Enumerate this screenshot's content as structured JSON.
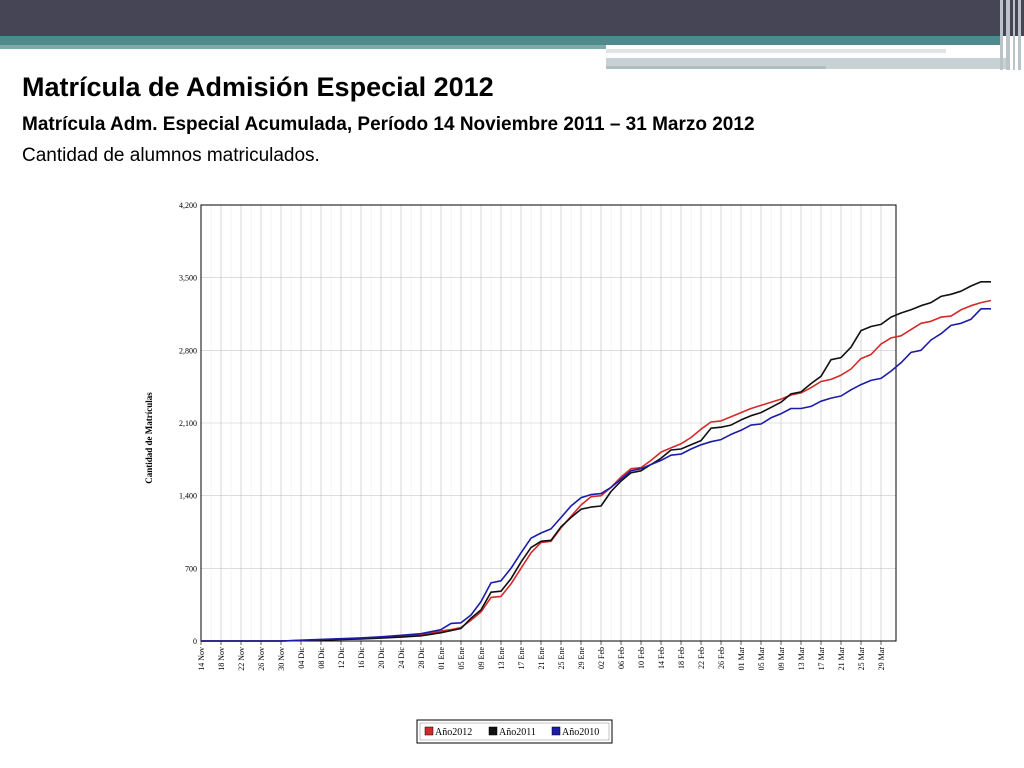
{
  "slide": {
    "title": "Matrícula de Admisión Especial 2012",
    "subtitle": "Matrícula Adm. Especial Acumulada, Período 14 Noviembre 2011 – 31 Marzo 2012",
    "subtitle2": "Cantidad de alumnos matriculados."
  },
  "chart_data": {
    "type": "line",
    "ylabel": "Cantidad de Matrículas",
    "xlabel": "",
    "ylim": [
      0,
      4200
    ],
    "y_ticks": [
      "0",
      "700",
      "1,400",
      "2,100",
      "2,800",
      "3,500",
      "4,200"
    ],
    "y_tick_values": [
      0,
      700,
      1400,
      2100,
      2800,
      3500,
      4200
    ],
    "x_ticks": [
      "14 Nov",
      "18 Nov",
      "22 Nov",
      "26 Nov",
      "30 Nov",
      "04 Dic",
      "08 Dic",
      "12 Dic",
      "16 Dic",
      "20 Dic",
      "24 Dic",
      "28 Dic",
      "01 Ene",
      "05 Ene",
      "09 Ene",
      "13 Ene",
      "17 Ene",
      "21 Ene",
      "25 Ene",
      "29 Ene",
      "02 Feb",
      "06 Feb",
      "10 Feb",
      "14 Feb",
      "18 Feb",
      "22 Feb",
      "26 Feb",
      "01 Mar",
      "05 Mar",
      "09 Mar",
      "13 Mar",
      "17 Mar",
      "21 Mar",
      "25 Mar",
      "29 Mar"
    ],
    "x_range_days": [
      0,
      139
    ],
    "grid": true,
    "legend_position": "bottom",
    "series": [
      {
        "name": "Año2012",
        "color": "#d42a2a",
        "points": [
          [
            0,
            0
          ],
          [
            16,
            0
          ],
          [
            20,
            5
          ],
          [
            24,
            12
          ],
          [
            28,
            18
          ],
          [
            32,
            25
          ],
          [
            36,
            35
          ],
          [
            40,
            45
          ],
          [
            44,
            60
          ],
          [
            46,
            75
          ],
          [
            48,
            95
          ],
          [
            50,
            110
          ],
          [
            52,
            130
          ],
          [
            54,
            200
          ],
          [
            56,
            280
          ],
          [
            58,
            420
          ],
          [
            60,
            430
          ],
          [
            62,
            550
          ],
          [
            64,
            700
          ],
          [
            66,
            850
          ],
          [
            68,
            950
          ],
          [
            70,
            960
          ],
          [
            72,
            1090
          ],
          [
            74,
            1200
          ],
          [
            76,
            1310
          ],
          [
            78,
            1390
          ],
          [
            80,
            1400
          ],
          [
            82,
            1480
          ],
          [
            84,
            1580
          ],
          [
            86,
            1660
          ],
          [
            88,
            1670
          ],
          [
            90,
            1740
          ],
          [
            92,
            1820
          ],
          [
            94,
            1860
          ],
          [
            96,
            1900
          ],
          [
            98,
            1960
          ],
          [
            100,
            2040
          ],
          [
            102,
            2110
          ],
          [
            104,
            2120
          ],
          [
            106,
            2160
          ],
          [
            108,
            2200
          ],
          [
            110,
            2240
          ],
          [
            112,
            2270
          ],
          [
            114,
            2300
          ],
          [
            116,
            2330
          ],
          [
            118,
            2370
          ],
          [
            120,
            2390
          ],
          [
            122,
            2440
          ],
          [
            124,
            2500
          ],
          [
            126,
            2520
          ],
          [
            128,
            2560
          ],
          [
            130,
            2620
          ],
          [
            132,
            2720
          ],
          [
            134,
            2760
          ],
          [
            136,
            2860
          ],
          [
            138,
            2920
          ],
          [
            140,
            2940
          ],
          [
            142,
            3000
          ],
          [
            144,
            3060
          ],
          [
            146,
            3080
          ],
          [
            148,
            3120
          ],
          [
            150,
            3130
          ],
          [
            152,
            3190
          ],
          [
            154,
            3230
          ],
          [
            156,
            3260
          ],
          [
            158,
            3280
          ]
        ]
      },
      {
        "name": "Año2011",
        "color": "#111111",
        "points": [
          [
            0,
            0
          ],
          [
            16,
            0
          ],
          [
            20,
            5
          ],
          [
            24,
            10
          ],
          [
            28,
            15
          ],
          [
            32,
            20
          ],
          [
            36,
            28
          ],
          [
            40,
            38
          ],
          [
            44,
            50
          ],
          [
            46,
            65
          ],
          [
            48,
            80
          ],
          [
            50,
            100
          ],
          [
            52,
            120
          ],
          [
            54,
            220
          ],
          [
            56,
            300
          ],
          [
            58,
            470
          ],
          [
            60,
            480
          ],
          [
            62,
            600
          ],
          [
            64,
            760
          ],
          [
            66,
            900
          ],
          [
            68,
            960
          ],
          [
            70,
            970
          ],
          [
            72,
            1100
          ],
          [
            74,
            1190
          ],
          [
            76,
            1270
          ],
          [
            78,
            1290
          ],
          [
            80,
            1300
          ],
          [
            82,
            1440
          ],
          [
            84,
            1540
          ],
          [
            86,
            1620
          ],
          [
            88,
            1640
          ],
          [
            90,
            1700
          ],
          [
            92,
            1760
          ],
          [
            94,
            1840
          ],
          [
            96,
            1850
          ],
          [
            98,
            1890
          ],
          [
            100,
            1930
          ],
          [
            102,
            2050
          ],
          [
            104,
            2060
          ],
          [
            106,
            2080
          ],
          [
            108,
            2130
          ],
          [
            110,
            2170
          ],
          [
            112,
            2200
          ],
          [
            114,
            2250
          ],
          [
            116,
            2300
          ],
          [
            118,
            2380
          ],
          [
            120,
            2400
          ],
          [
            122,
            2480
          ],
          [
            124,
            2550
          ],
          [
            126,
            2710
          ],
          [
            128,
            2730
          ],
          [
            130,
            2830
          ],
          [
            132,
            2990
          ],
          [
            134,
            3030
          ],
          [
            136,
            3050
          ],
          [
            138,
            3120
          ],
          [
            140,
            3160
          ],
          [
            142,
            3190
          ],
          [
            144,
            3230
          ],
          [
            146,
            3260
          ],
          [
            148,
            3320
          ],
          [
            150,
            3340
          ],
          [
            152,
            3370
          ],
          [
            154,
            3420
          ],
          [
            156,
            3460
          ],
          [
            158,
            3460
          ]
        ]
      },
      {
        "name": "Año2010",
        "color": "#1c1ca8",
        "points": [
          [
            0,
            0
          ],
          [
            16,
            0
          ],
          [
            20,
            8
          ],
          [
            24,
            15
          ],
          [
            28,
            22
          ],
          [
            32,
            30
          ],
          [
            36,
            40
          ],
          [
            40,
            55
          ],
          [
            44,
            70
          ],
          [
            46,
            90
          ],
          [
            48,
            110
          ],
          [
            50,
            170
          ],
          [
            52,
            175
          ],
          [
            54,
            250
          ],
          [
            56,
            380
          ],
          [
            58,
            560
          ],
          [
            60,
            580
          ],
          [
            62,
            700
          ],
          [
            64,
            850
          ],
          [
            66,
            990
          ],
          [
            68,
            1040
          ],
          [
            70,
            1080
          ],
          [
            72,
            1190
          ],
          [
            74,
            1300
          ],
          [
            76,
            1380
          ],
          [
            78,
            1410
          ],
          [
            80,
            1420
          ],
          [
            82,
            1480
          ],
          [
            84,
            1560
          ],
          [
            86,
            1640
          ],
          [
            88,
            1660
          ],
          [
            90,
            1700
          ],
          [
            92,
            1740
          ],
          [
            94,
            1790
          ],
          [
            96,
            1800
          ],
          [
            98,
            1850
          ],
          [
            100,
            1890
          ],
          [
            102,
            1920
          ],
          [
            104,
            1940
          ],
          [
            106,
            1990
          ],
          [
            108,
            2030
          ],
          [
            110,
            2080
          ],
          [
            112,
            2090
          ],
          [
            114,
            2150
          ],
          [
            116,
            2190
          ],
          [
            118,
            2240
          ],
          [
            120,
            2240
          ],
          [
            122,
            2260
          ],
          [
            124,
            2310
          ],
          [
            126,
            2340
          ],
          [
            128,
            2360
          ],
          [
            130,
            2420
          ],
          [
            132,
            2470
          ],
          [
            134,
            2510
          ],
          [
            136,
            2530
          ],
          [
            138,
            2600
          ],
          [
            140,
            2680
          ],
          [
            142,
            2780
          ],
          [
            144,
            2800
          ],
          [
            146,
            2900
          ],
          [
            148,
            2960
          ],
          [
            150,
            3040
          ],
          [
            152,
            3060
          ],
          [
            154,
            3100
          ],
          [
            156,
            3200
          ],
          [
            158,
            3200
          ]
        ]
      }
    ]
  }
}
